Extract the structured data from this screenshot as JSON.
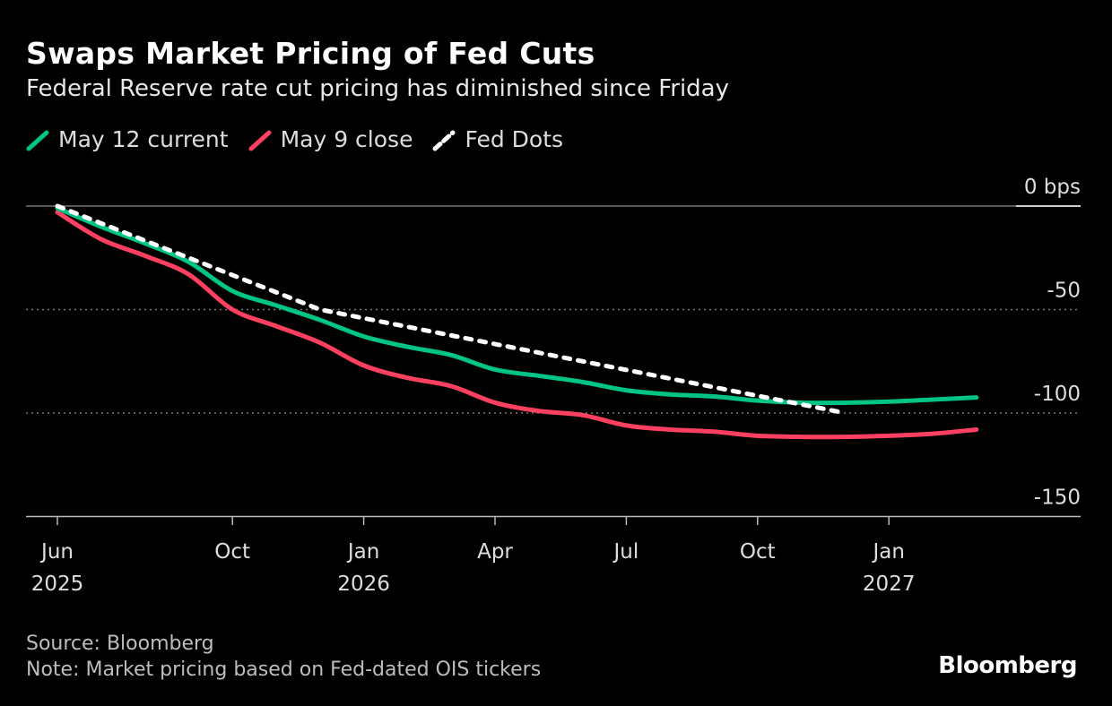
{
  "chart_data": {
    "type": "line",
    "title": "Swaps Market Pricing of Fed Cuts",
    "subtitle": "Federal Reserve rate cut pricing has diminished since Friday",
    "legend_placement": "top-left",
    "ylabel": "",
    "yunit": "bps",
    "ylim": [
      -150,
      0
    ],
    "yticks": [
      {
        "value": 0,
        "label": "0 bps"
      },
      {
        "value": -50,
        "label": "-50"
      },
      {
        "value": -100,
        "label": "-100"
      },
      {
        "value": -150,
        "label": "-150"
      }
    ],
    "xlim": [
      "2025-06",
      "2027-04"
    ],
    "xticks": [
      {
        "date": "2025-06",
        "label": "Jun",
        "year": "2025"
      },
      {
        "date": "2025-10",
        "label": "Oct",
        "year": ""
      },
      {
        "date": "2026-01",
        "label": "Jan",
        "year": "2026"
      },
      {
        "date": "2026-04",
        "label": "Apr",
        "year": ""
      },
      {
        "date": "2026-07",
        "label": "Jul",
        "year": ""
      },
      {
        "date": "2026-10",
        "label": "Oct",
        "year": ""
      },
      {
        "date": "2027-01",
        "label": "Jan",
        "year": "2027"
      }
    ],
    "grid": "horizontal dotted",
    "series": [
      {
        "name": "May 12 current",
        "color": "#00c386",
        "dashed": false,
        "x": [
          "2025-06",
          "2025-07",
          "2025-08",
          "2025-09",
          "2025-10",
          "2025-11",
          "2025-12",
          "2026-01",
          "2026-02",
          "2026-03",
          "2026-04",
          "2026-05",
          "2026-06",
          "2026-07",
          "2026-08",
          "2026-09",
          "2026-10",
          "2026-11",
          "2026-12",
          "2027-01",
          "2027-02",
          "2027-03"
        ],
        "values": [
          -1,
          -10,
          -18,
          -27,
          -41,
          -48,
          -55,
          -63,
          -68,
          -72,
          -79,
          -82,
          -85,
          -89,
          -91,
          -92,
          -94,
          -95,
          -95,
          -94.5,
          -93.5,
          -92.5
        ]
      },
      {
        "name": "May 9 close",
        "color": "#ff4060",
        "dashed": false,
        "x": [
          "2025-06",
          "2025-07",
          "2025-08",
          "2025-09",
          "2025-10",
          "2025-11",
          "2025-12",
          "2026-01",
          "2026-02",
          "2026-03",
          "2026-04",
          "2026-05",
          "2026-06",
          "2026-07",
          "2026-08",
          "2026-09",
          "2026-10",
          "2026-11",
          "2026-12",
          "2027-01",
          "2027-02",
          "2027-03"
        ],
        "values": [
          -3,
          -16,
          -24,
          -33,
          -50,
          -58,
          -66,
          -77,
          -83,
          -87,
          -95,
          -99,
          -101,
          -106,
          -108,
          -109,
          -111,
          -111.5,
          -111.5,
          -111,
          -110,
          -108
        ]
      },
      {
        "name": "Fed Dots",
        "color": "#ffffff",
        "dashed": true,
        "x": [
          "2025-06",
          "2025-12",
          "2026-12"
        ],
        "values": [
          0,
          -50,
          -100
        ]
      }
    ]
  },
  "footer": {
    "source": "Source: Bloomberg",
    "note": "Note: Market pricing based on Fed-dated OIS tickers"
  },
  "logo": "Bloomberg"
}
